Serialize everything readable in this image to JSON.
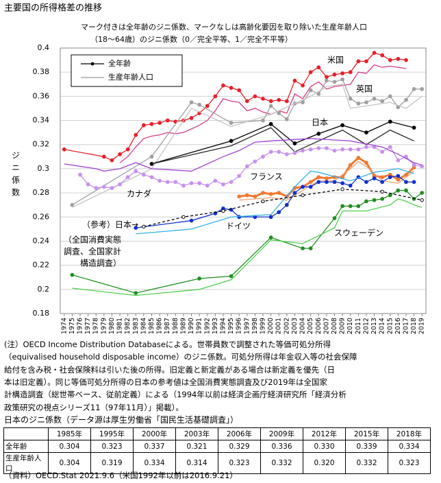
{
  "chart_data": {
    "type": "line",
    "title": "主要国の所得格差の推移",
    "subtitle": [
      "マーク付きは全年齢のジニ係数、マークなしは高齢化要因を取り除いた生産年齢人口",
      "（18～64歳）のジニ係数（0／完全平等、1／完全不平等）"
    ],
    "y_label": "ジニ係数",
    "xlim": [
      1973.5,
      2019.5
    ],
    "xticks": [
      1974,
      1975,
      1976,
      1977,
      1978,
      1979,
      1980,
      1981,
      1982,
      1983,
      1984,
      1985,
      1986,
      1987,
      1988,
      1989,
      1990,
      1991,
      1992,
      1993,
      1994,
      1995,
      1996,
      1997,
      1998,
      1999,
      2000,
      2001,
      2002,
      2003,
      2004,
      2005,
      2006,
      2007,
      2008,
      2009,
      2010,
      2011,
      2012,
      2013,
      2014,
      2015,
      2016,
      2017,
      2018,
      2019
    ],
    "ylim": [
      0.18,
      0.4
    ],
    "yticks": [
      0.18,
      0.2,
      0.22,
      0.24,
      0.26,
      0.28,
      0.3,
      0.32,
      0.34,
      0.36,
      0.38,
      0.4
    ],
    "grid": true,
    "legend": [
      {
        "label": "全年齢",
        "color": "#000000",
        "marker": "filled"
      },
      {
        "label": "生産年齢人口",
        "color": "#999999",
        "marker": "none"
      }
    ],
    "annotations": [
      "米国",
      "英国",
      "日本",
      "フランス",
      "カナダ",
      "ドイツ",
      "スウェーデン",
      "（参考）日本→",
      "（全国消費実態",
      "調査、全国家計",
      "構造調査）"
    ],
    "series": [
      {
        "color": "#e8202a",
        "marker": "filled",
        "x": [
          1974,
          1979,
          1980,
          1981,
          1982,
          1983,
          1984,
          1985,
          1986,
          1987,
          1988,
          1989,
          1990,
          1991,
          1992,
          1993,
          1994,
          1995,
          1996,
          1997,
          1998,
          1999,
          2000,
          2001,
          2002,
          2003,
          2004,
          2005,
          2006,
          2007,
          2008,
          2009,
          2010,
          2011,
          2012,
          2013,
          2014,
          2015,
          2016,
          2017
        ],
        "values": [
          0.316,
          0.31,
          0.307,
          0.312,
          0.316,
          0.328,
          0.336,
          0.337,
          0.338,
          0.34,
          0.339,
          0.34,
          0.342,
          0.346,
          0.352,
          0.36,
          0.369,
          0.367,
          0.365,
          0.356,
          0.36,
          0.358,
          0.356,
          0.357,
          0.356,
          0.373,
          0.369,
          0.38,
          0.384,
          0.376,
          0.378,
          0.379,
          0.38,
          0.389,
          0.389,
          0.396,
          0.394,
          0.39,
          0.391,
          0.39
        ]
      },
      {
        "color": "#d83a86",
        "marker": "none",
        "x": [
          1981,
          1982,
          1983,
          1984,
          1985,
          1986,
          1987,
          1988,
          1989,
          1990,
          1991,
          1992,
          1993,
          1994,
          1995,
          1996,
          1997,
          1998,
          1999,
          2000,
          2001,
          2002,
          2003,
          2004,
          2005,
          2006,
          2007,
          2008,
          2009,
          2010,
          2011,
          2012,
          2013,
          2014,
          2015,
          2016,
          2017
        ],
        "values": [
          0.305,
          0.31,
          0.318,
          0.325,
          0.327,
          0.328,
          0.33,
          0.329,
          0.33,
          0.333,
          0.336,
          0.34,
          0.348,
          0.358,
          0.356,
          0.355,
          0.348,
          0.35,
          0.347,
          0.345,
          0.348,
          0.346,
          0.362,
          0.358,
          0.368,
          0.372,
          0.366,
          0.368,
          0.369,
          0.37,
          0.38,
          0.379,
          0.386,
          0.384,
          0.385,
          0.384,
          0.383
        ]
      },
      {
        "color": "#a0a0a0",
        "marker": "filled",
        "x": [
          1975,
          1985,
          1990,
          1991,
          1995,
          1999,
          2000,
          2001,
          2002,
          2003,
          2004,
          2005,
          2006,
          2007,
          2008,
          2009,
          2010,
          2011,
          2012,
          2013,
          2014,
          2015,
          2016,
          2017,
          2018,
          2019
        ],
        "values": [
          0.27,
          0.31,
          0.355,
          0.353,
          0.338,
          0.34,
          0.352,
          0.346,
          0.341,
          0.354,
          0.355,
          0.365,
          0.362,
          0.373,
          0.372,
          0.374,
          0.358,
          0.354,
          0.355,
          0.358,
          0.356,
          0.36,
          0.351,
          0.357,
          0.366,
          0.366
        ]
      },
      {
        "color": "#c4c4c4",
        "marker": "none",
        "x": [
          1975,
          1985,
          1990,
          1995,
          2000,
          2005,
          2007,
          2009,
          2010,
          2015,
          2017,
          2019
        ],
        "values": [
          0.268,
          0.3,
          0.35,
          0.335,
          0.345,
          0.36,
          0.368,
          0.37,
          0.35,
          0.355,
          0.35,
          0.36
        ]
      },
      {
        "color": "#000000",
        "marker": "filled",
        "x": [
          1985,
          1995,
          2000,
          2003,
          2006,
          2009,
          2012,
          2015,
          2018
        ],
        "values": [
          0.304,
          0.323,
          0.337,
          0.321,
          0.329,
          0.336,
          0.33,
          0.339,
          0.334
        ]
      },
      {
        "color": "#222222",
        "marker": "none",
        "x": [
          1985,
          1995,
          2000,
          2003,
          2006,
          2009,
          2012,
          2015,
          2018
        ],
        "values": [
          0.304,
          0.319,
          0.334,
          0.314,
          0.323,
          0.332,
          0.32,
          0.332,
          0.323
        ]
      },
      {
        "color": "#f07830",
        "marker": "filled",
        "x": [
          1996,
          1997,
          1998,
          1999,
          2000,
          2001,
          2002,
          2003,
          2004,
          2005,
          2006,
          2007,
          2008,
          2009,
          2010,
          2011,
          2012,
          2013,
          2014,
          2015,
          2016,
          2017,
          2018
        ],
        "values": [
          0.277,
          0.278,
          0.277,
          0.28,
          0.279,
          0.28,
          0.277,
          0.284,
          0.285,
          0.289,
          0.293,
          0.292,
          0.293,
          0.293,
          0.303,
          0.309,
          0.305,
          0.294,
          0.293,
          0.295,
          0.291,
          0.295,
          0.301
        ]
      },
      {
        "color": "#f4a078",
        "marker": "none",
        "x": [
          1996,
          2000,
          2002,
          2004,
          2006,
          2008,
          2010,
          2011,
          2012,
          2014,
          2016,
          2018
        ],
        "values": [
          0.274,
          0.276,
          0.274,
          0.282,
          0.29,
          0.29,
          0.3,
          0.306,
          0.302,
          0.29,
          0.288,
          0.298
        ]
      },
      {
        "color": "#1030d0",
        "marker": "filled",
        "x": [
          1983,
          1990,
          1993,
          1994,
          1995,
          1996,
          1998,
          2000,
          2001,
          2002,
          2003,
          2004,
          2005,
          2006,
          2007,
          2008,
          2009,
          2010,
          2011,
          2012,
          2013,
          2014,
          2015,
          2016,
          2017,
          2018
        ],
        "values": [
          0.251,
          0.257,
          0.263,
          0.267,
          0.266,
          0.26,
          0.26,
          0.26,
          0.264,
          0.27,
          0.28,
          0.285,
          0.285,
          0.289,
          0.289,
          0.289,
          0.288,
          0.286,
          0.293,
          0.289,
          0.292,
          0.289,
          0.293,
          0.294,
          0.289,
          0.289
        ]
      },
      {
        "color": "#30b0e8",
        "marker": "none",
        "x": [
          1983,
          1990,
          1995,
          2000,
          2003,
          2005,
          2006,
          2010,
          2013,
          2016,
          2018
        ],
        "values": [
          0.246,
          0.25,
          0.26,
          0.262,
          0.285,
          0.298,
          0.297,
          0.29,
          0.297,
          0.3,
          0.296
        ]
      },
      {
        "color": "#c890f0",
        "marker": "filled",
        "x": [
          1976,
          1977,
          1978,
          1979,
          1980,
          1981,
          1982,
          1983,
          1984,
          1985,
          1986,
          1987,
          1988,
          1989,
          1990,
          1991,
          1992,
          1993,
          1994,
          1995,
          1996,
          1997,
          1998,
          1999,
          2000,
          2001,
          2002,
          2003,
          2004,
          2005,
          2006,
          2007,
          2008,
          2009,
          2010,
          2011,
          2012,
          2013,
          2014,
          2015,
          2016,
          2017,
          2018,
          2019
        ],
        "values": [
          0.295,
          0.287,
          0.284,
          0.285,
          0.284,
          0.287,
          0.293,
          0.298,
          0.295,
          0.293,
          0.29,
          0.289,
          0.289,
          0.286,
          0.288,
          0.288,
          0.286,
          0.29,
          0.287,
          0.289,
          0.294,
          0.302,
          0.306,
          0.31,
          0.314,
          0.314,
          0.312,
          0.313,
          0.315,
          0.316,
          0.317,
          0.317,
          0.315,
          0.316,
          0.316,
          0.316,
          0.318,
          0.318,
          0.314,
          0.318,
          0.307,
          0.31,
          0.303,
          0.302
        ]
      },
      {
        "color": "#a040d0",
        "marker": "none",
        "x": [
          1974,
          1978,
          1979,
          1981,
          1983,
          1985,
          1990,
          1994,
          1996,
          1998,
          2000,
          2005,
          2010,
          2014,
          2016,
          2018,
          2019
        ],
        "values": [
          0.304,
          0.3,
          0.298,
          0.3,
          0.305,
          0.3,
          0.298,
          0.31,
          0.315,
          0.322,
          0.323,
          0.325,
          0.323,
          0.318,
          0.312,
          0.305,
          0.303
        ]
      },
      {
        "color": "#209020",
        "marker": "filled",
        "x": [
          1975,
          1983,
          1991,
          1995,
          2000,
          2004,
          2005,
          2008,
          2009,
          2010,
          2011,
          2012,
          2013,
          2014,
          2015,
          2016,
          2017,
          2018,
          2019
        ],
        "values": [
          0.212,
          0.197,
          0.209,
          0.211,
          0.243,
          0.234,
          0.234,
          0.259,
          0.269,
          0.269,
          0.269,
          0.273,
          0.274,
          0.275,
          0.278,
          0.282,
          0.282,
          0.275,
          0.28
        ]
      },
      {
        "color": "#50d050",
        "marker": "none",
        "x": [
          1975,
          1983,
          1991,
          1995,
          2000,
          2004,
          2008,
          2009,
          2012,
          2015,
          2016,
          2017,
          2018,
          2019
        ],
        "values": [
          0.201,
          0.195,
          0.2,
          0.208,
          0.241,
          0.238,
          0.251,
          0.265,
          0.265,
          0.27,
          0.275,
          0.273,
          0.27,
          0.268
        ]
      },
      {
        "color": "#000000",
        "marker": "open",
        "dash": true,
        "x": [
          1984,
          1989,
          1994,
          1999,
          2004,
          2009,
          2014,
          2019
        ],
        "values": [
          0.252,
          0.26,
          0.265,
          0.273,
          0.278,
          0.283,
          0.281,
          0.274
        ]
      }
    ]
  },
  "notes": [
    "(注）OECD Income Distribution Databaseによる。世帯員数で調整された等価可処分所得",
    "（equivalised household disposable income）のジニ係数。可処分所得は年金収入等の社会保障",
    "給付を含み税・社会保険料は引いた後の所得。旧定義と新定義がある場合は新定義を優先（日",
    "本は旧定義）。同じ等価可処分所得の日本の参考値は全国消費実態調査及び2019年は全国家",
    "計構造調査（総世帯ベース、従前定義）による（1994年以前は経済企画庁経済研究所「経済分析",
    "政策研究の視点シリーズ11（97年11月）」掲載）。"
  ],
  "table": {
    "title": "日本のジニ係数（データ源は厚生労働省「国民生活基礎調査」）",
    "header": [
      "1985年",
      "1995年",
      "2000年",
      "2003年",
      "2006年",
      "2009年",
      "2012年",
      "2015年",
      "2018年"
    ],
    "rows": [
      [
        "全年齢",
        "0.304",
        "0.323",
        "0.337",
        "0.321",
        "0.329",
        "0.336",
        "0.330",
        "0.339",
        "0.334"
      ],
      [
        "生産年齢人口",
        "0.304",
        "0.319",
        "0.334",
        "0.314",
        "0.323",
        "0.332",
        "0.320",
        "0.332",
        "0.323"
      ]
    ]
  },
  "source": "（資料）OECD.Stat 2021.9.6（米国1992年以前は2016.9.21）"
}
